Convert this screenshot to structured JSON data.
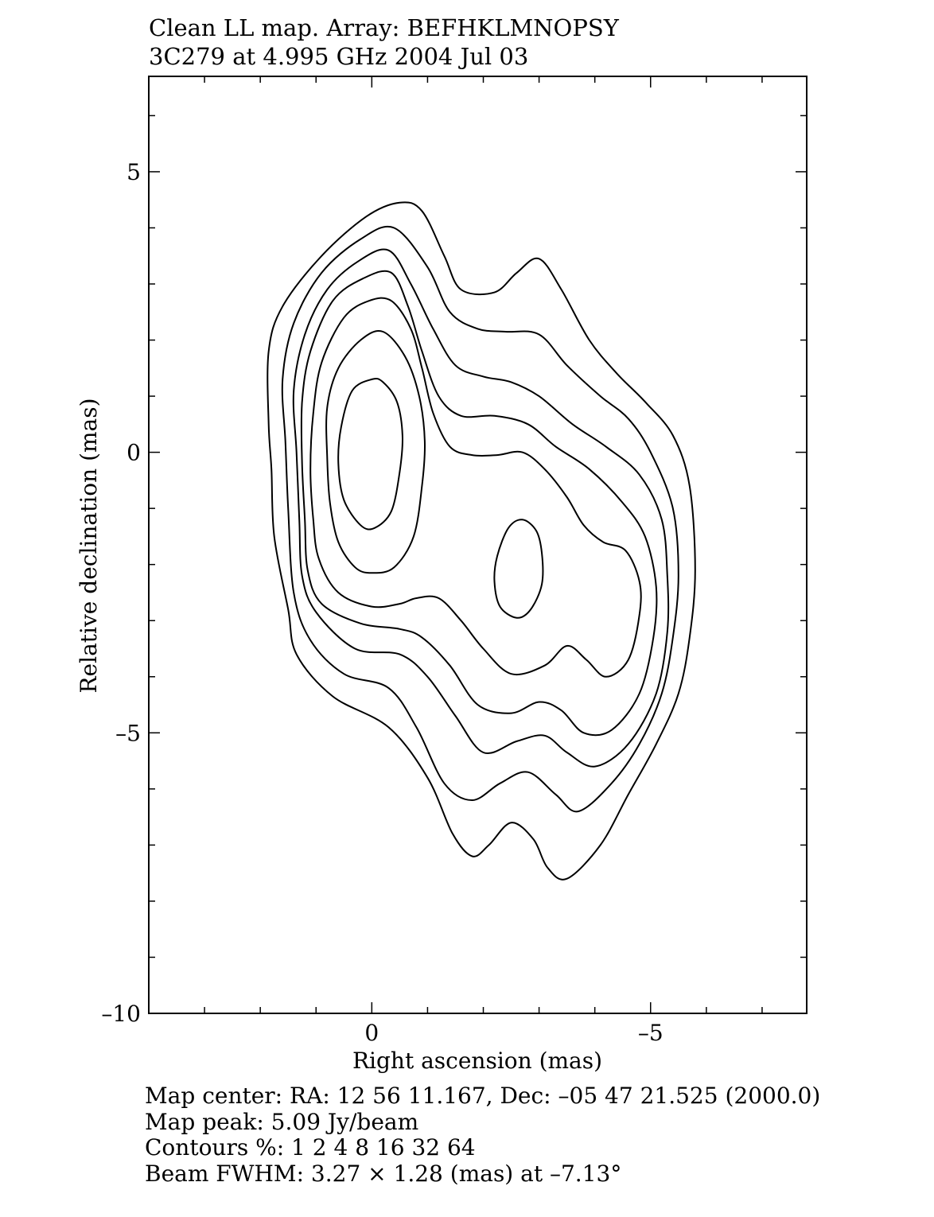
{
  "title_lines": [
    "Clean LL map. Array: BEFHKLMNOPSY",
    "3C279 at 4.995 GHz 2004 Jul 03"
  ],
  "footer_lines": [
    "Map center: RA: 12 56 11.167, Dec: –05 47 21.525 (2000.0)",
    "Map peak: 5.09 Jy/beam",
    "Contours %: 1 2 4 8 16 32 64",
    "Beam FWHM: 3.27 × 1.28 (mas) at –7.13°"
  ],
  "chart_data": {
    "type": "contour",
    "xlabel": "Right ascension (mas)",
    "ylabel": "Relative declination (mas)",
    "xlim": [
      4,
      -7.8
    ],
    "ylim": [
      -10,
      6.7
    ],
    "x_reversed": true,
    "xticks_labeled": [
      {
        "value": 0,
        "label": "0"
      },
      {
        "value": -5,
        "label": "–5"
      }
    ],
    "yticks_labeled": [
      {
        "value": 5,
        "label": "5"
      },
      {
        "value": 0,
        "label": "0"
      },
      {
        "value": -5,
        "label": "–5"
      },
      {
        "value": -10,
        "label": "–10"
      }
    ],
    "minor_tick_step": 1,
    "grid": false,
    "contour_levels_percent": [
      1,
      2,
      4,
      8,
      16,
      32,
      64
    ],
    "contours": [
      {
        "level": 1,
        "points": [
          [
            -0.5,
            4.45
          ],
          [
            0.1,
            4.2
          ],
          [
            0.9,
            3.5
          ],
          [
            1.6,
            2.6
          ],
          [
            1.85,
            1.8
          ],
          [
            1.85,
            0.5
          ],
          [
            1.8,
            -0.3
          ],
          [
            1.75,
            -1.5
          ],
          [
            1.5,
            -2.8
          ],
          [
            1.35,
            -3.6
          ],
          [
            0.7,
            -4.35
          ],
          [
            -0.3,
            -4.9
          ],
          [
            -1.0,
            -5.8
          ],
          [
            -1.45,
            -6.8
          ],
          [
            -1.8,
            -7.2
          ],
          [
            -2.1,
            -7.0
          ],
          [
            -2.5,
            -6.6
          ],
          [
            -2.9,
            -6.9
          ],
          [
            -3.15,
            -7.4
          ],
          [
            -3.5,
            -7.6
          ],
          [
            -4.1,
            -7.0
          ],
          [
            -4.6,
            -6.1
          ],
          [
            -5.1,
            -5.2
          ],
          [
            -5.5,
            -4.3
          ],
          [
            -5.7,
            -3.3
          ],
          [
            -5.8,
            -2.1
          ],
          [
            -5.7,
            -0.6
          ],
          [
            -5.4,
            0.3
          ],
          [
            -4.9,
            0.9
          ],
          [
            -4.4,
            1.4
          ],
          [
            -3.9,
            2.0
          ],
          [
            -3.4,
            2.9
          ],
          [
            -3.0,
            3.45
          ],
          [
            -2.6,
            3.2
          ],
          [
            -2.2,
            2.85
          ],
          [
            -1.6,
            2.9
          ],
          [
            -1.3,
            3.5
          ],
          [
            -0.9,
            4.3
          ],
          [
            -0.5,
            4.45
          ]
        ]
      },
      {
        "level": 2,
        "points": [
          [
            -0.4,
            4.0
          ],
          [
            0.2,
            3.8
          ],
          [
            0.9,
            3.2
          ],
          [
            1.4,
            2.3
          ],
          [
            1.6,
            1.3
          ],
          [
            1.55,
            0.2
          ],
          [
            1.5,
            -1.0
          ],
          [
            1.4,
            -2.5
          ],
          [
            1.1,
            -3.35
          ],
          [
            0.5,
            -3.95
          ],
          [
            -0.3,
            -4.2
          ],
          [
            -0.8,
            -4.9
          ],
          [
            -1.3,
            -5.9
          ],
          [
            -1.8,
            -6.2
          ],
          [
            -2.3,
            -5.9
          ],
          [
            -2.8,
            -5.7
          ],
          [
            -3.3,
            -6.1
          ],
          [
            -3.7,
            -6.4
          ],
          [
            -4.3,
            -5.9
          ],
          [
            -4.8,
            -5.2
          ],
          [
            -5.2,
            -4.3
          ],
          [
            -5.4,
            -3.3
          ],
          [
            -5.5,
            -2.2
          ],
          [
            -5.4,
            -1.0
          ],
          [
            -5.0,
            0.0
          ],
          [
            -4.6,
            0.6
          ],
          [
            -4.1,
            1.0
          ],
          [
            -3.5,
            1.55
          ],
          [
            -3.0,
            2.1
          ],
          [
            -2.4,
            2.15
          ],
          [
            -1.9,
            2.2
          ],
          [
            -1.4,
            2.5
          ],
          [
            -1.0,
            3.3
          ],
          [
            -0.4,
            4.0
          ]
        ]
      },
      {
        "level": 4,
        "points": [
          [
            -0.3,
            3.6
          ],
          [
            0.25,
            3.4
          ],
          [
            0.8,
            2.9
          ],
          [
            1.2,
            2.1
          ],
          [
            1.4,
            1.1
          ],
          [
            1.35,
            0.0
          ],
          [
            1.3,
            -1.2
          ],
          [
            1.25,
            -2.2
          ],
          [
            1.0,
            -2.85
          ],
          [
            0.3,
            -3.5
          ],
          [
            -0.5,
            -3.6
          ],
          [
            -1.0,
            -4.0
          ],
          [
            -1.5,
            -4.7
          ],
          [
            -2.0,
            -5.35
          ],
          [
            -2.6,
            -5.15
          ],
          [
            -3.1,
            -5.05
          ],
          [
            -3.5,
            -5.35
          ],
          [
            -4.0,
            -5.6
          ],
          [
            -4.6,
            -5.2
          ],
          [
            -5.1,
            -4.3
          ],
          [
            -5.3,
            -3.2
          ],
          [
            -5.3,
            -2.2
          ],
          [
            -5.2,
            -1.2
          ],
          [
            -4.8,
            -0.4
          ],
          [
            -4.2,
            0.1
          ],
          [
            -3.6,
            0.5
          ],
          [
            -3.0,
            1.0
          ],
          [
            -2.5,
            1.25
          ],
          [
            -2.0,
            1.35
          ],
          [
            -1.5,
            1.55
          ],
          [
            -1.1,
            2.2
          ],
          [
            -0.7,
            3.0
          ],
          [
            -0.3,
            3.6
          ]
        ]
      },
      {
        "level": 8,
        "points": [
          [
            -0.35,
            3.2
          ],
          [
            0.15,
            3.1
          ],
          [
            0.7,
            2.7
          ],
          [
            1.1,
            1.8
          ],
          [
            1.25,
            0.9
          ],
          [
            1.25,
            -0.2
          ],
          [
            1.2,
            -1.2
          ],
          [
            1.15,
            -2.1
          ],
          [
            0.9,
            -2.7
          ],
          [
            0.2,
            -3.05
          ],
          [
            -0.5,
            -3.15
          ],
          [
            -0.9,
            -3.3
          ],
          [
            -1.4,
            -3.8
          ],
          [
            -1.9,
            -4.5
          ],
          [
            -2.5,
            -4.65
          ],
          [
            -3.0,
            -4.45
          ],
          [
            -3.4,
            -4.6
          ],
          [
            -3.8,
            -5.0
          ],
          [
            -4.3,
            -4.95
          ],
          [
            -4.8,
            -4.3
          ],
          [
            -5.05,
            -3.3
          ],
          [
            -5.1,
            -2.4
          ],
          [
            -4.9,
            -1.5
          ],
          [
            -4.5,
            -0.9
          ],
          [
            -3.9,
            -0.3
          ],
          [
            -3.3,
            0.1
          ],
          [
            -2.8,
            0.5
          ],
          [
            -2.2,
            0.65
          ],
          [
            -1.6,
            0.65
          ],
          [
            -1.2,
            1.0
          ],
          [
            -0.9,
            1.8
          ],
          [
            -0.65,
            2.6
          ],
          [
            -0.35,
            3.2
          ]
        ]
      },
      {
        "level": 16,
        "points": [
          [
            -0.35,
            2.7
          ],
          [
            0.05,
            2.7
          ],
          [
            0.5,
            2.4
          ],
          [
            0.9,
            1.6
          ],
          [
            1.05,
            0.7
          ],
          [
            1.1,
            -0.3
          ],
          [
            1.05,
            -1.2
          ],
          [
            0.95,
            -1.9
          ],
          [
            0.6,
            -2.5
          ],
          [
            0.0,
            -2.75
          ],
          [
            -0.5,
            -2.7
          ],
          [
            -0.8,
            -2.6
          ],
          [
            -1.2,
            -2.6
          ],
          [
            -1.6,
            -3.0
          ],
          [
            -2.0,
            -3.5
          ],
          [
            -2.5,
            -3.95
          ],
          [
            -3.1,
            -3.8
          ],
          [
            -3.5,
            -3.45
          ],
          [
            -3.85,
            -3.7
          ],
          [
            -4.2,
            -4.0
          ],
          [
            -4.6,
            -3.7
          ],
          [
            -4.8,
            -2.9
          ],
          [
            -4.8,
            -2.3
          ],
          [
            -4.55,
            -1.75
          ],
          [
            -4.15,
            -1.6
          ],
          [
            -3.8,
            -1.3
          ],
          [
            -3.5,
            -0.8
          ],
          [
            -3.1,
            -0.3
          ],
          [
            -2.7,
            0.0
          ],
          [
            -2.25,
            -0.05
          ],
          [
            -1.8,
            -0.05
          ],
          [
            -1.4,
            0.1
          ],
          [
            -1.1,
            0.7
          ],
          [
            -0.9,
            1.5
          ],
          [
            -0.7,
            2.2
          ],
          [
            -0.35,
            2.7
          ]
        ]
      },
      {
        "level": 32,
        "points": [
          [
            -0.2,
            2.15
          ],
          [
            0.2,
            2.0
          ],
          [
            0.6,
            1.5
          ],
          [
            0.8,
            0.8
          ],
          [
            0.8,
            -0.1
          ],
          [
            0.75,
            -0.9
          ],
          [
            0.6,
            -1.6
          ],
          [
            0.3,
            -2.05
          ],
          [
            0.0,
            -2.15
          ],
          [
            -0.4,
            -2.05
          ],
          [
            -0.75,
            -1.5
          ],
          [
            -0.9,
            -0.6
          ],
          [
            -0.95,
            0.2
          ],
          [
            -0.85,
            1.0
          ],
          [
            -0.6,
            1.7
          ],
          [
            -0.2,
            2.15
          ]
        ]
      },
      {
        "level": 64,
        "points": [
          [
            0.0,
            1.3
          ],
          [
            0.35,
            1.1
          ],
          [
            0.55,
            0.45
          ],
          [
            0.6,
            -0.2
          ],
          [
            0.5,
            -0.85
          ],
          [
            0.2,
            -1.3
          ],
          [
            -0.05,
            -1.35
          ],
          [
            -0.35,
            -1.05
          ],
          [
            -0.5,
            -0.35
          ],
          [
            -0.55,
            0.3
          ],
          [
            -0.45,
            0.9
          ],
          [
            -0.2,
            1.25
          ],
          [
            0.0,
            1.3
          ]
        ]
      },
      {
        "level": 64,
        "points": [
          [
            -2.7,
            -1.2
          ],
          [
            -2.45,
            -1.35
          ],
          [
            -2.25,
            -1.85
          ],
          [
            -2.2,
            -2.3
          ],
          [
            -2.3,
            -2.75
          ],
          [
            -2.6,
            -2.95
          ],
          [
            -2.85,
            -2.8
          ],
          [
            -3.05,
            -2.35
          ],
          [
            -3.05,
            -1.8
          ],
          [
            -2.95,
            -1.4
          ],
          [
            -2.7,
            -1.2
          ]
        ]
      }
    ]
  }
}
